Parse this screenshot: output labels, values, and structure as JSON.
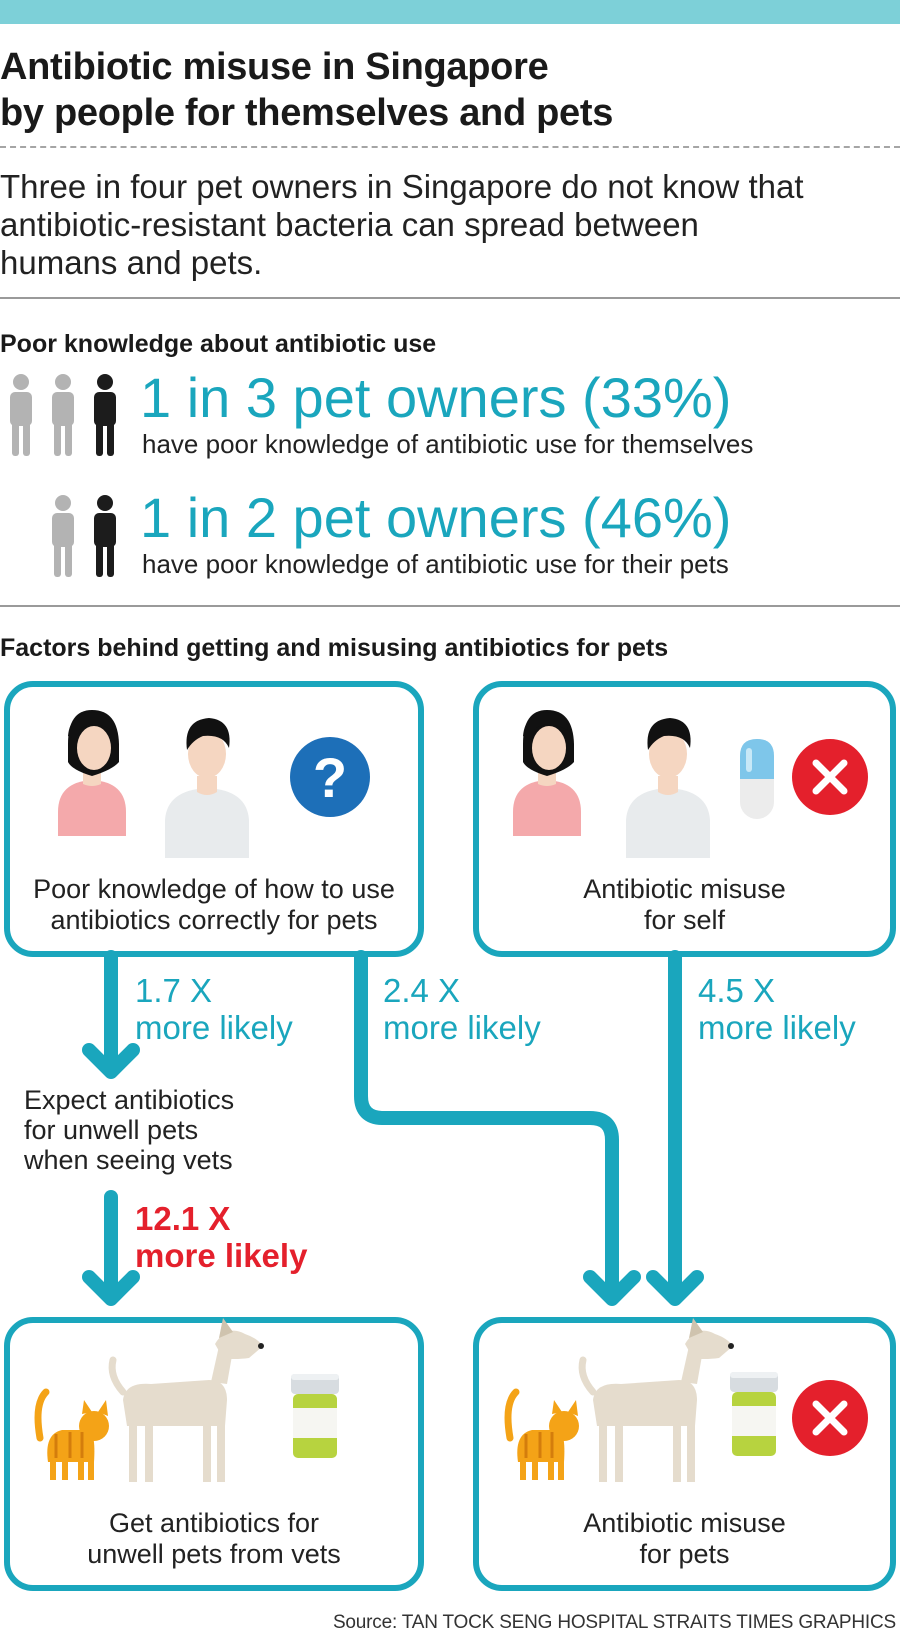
{
  "title_line1": "Antibiotic misuse in Singapore",
  "title_line2": "by people for themselves and pets",
  "intro_line1": "Three in four pet owners in Singapore do not know that",
  "intro_line2": "antibiotic-resistant bacteria can spread between",
  "intro_line3": "humans and pets.",
  "knowledge": {
    "heading": "Poor knowledge about antibiotic use",
    "stat1": {
      "headline": "1 in 3 pet owners (33%)",
      "desc": "have poor knowledge of antibiotic use for themselves",
      "total": 3,
      "highlighted": 1
    },
    "stat2": {
      "headline": "1 in 2 pet owners (46%)",
      "desc": "have poor knowledge of antibiotic use for their pets",
      "total": 2,
      "highlighted": 1
    }
  },
  "factors": {
    "heading": "Factors behind getting and misusing antibiotics for pets",
    "box_knowledge": {
      "line1": "Poor knowledge of how to use",
      "line2": "antibiotics correctly for pets"
    },
    "box_self": {
      "line1": "Antibiotic misuse",
      "line2": "for self"
    },
    "arrow1": {
      "value": "1.7 X",
      "label": "more likely"
    },
    "arrow2": {
      "value": "2.4 X",
      "label": "more likely"
    },
    "arrow3": {
      "value": "4.5 X",
      "label": "more likely"
    },
    "arrow4": {
      "value": "12.1 X",
      "label": "more likely"
    },
    "expect": {
      "line1": "Expect antibiotics",
      "line2": "for unwell pets",
      "line3": "when seeing vets"
    },
    "box_get": {
      "line1": "Get antibiotics for",
      "line2": "unwell pets from vets"
    },
    "box_misuse_pets": {
      "line1": "Antibiotic misuse",
      "line2": "for pets"
    }
  },
  "source": "Source: TAN TOCK SENG HOSPITAL   STRAITS TIMES GRAPHICS",
  "colors": {
    "teal": "#1aa6bd",
    "red": "#e4202c",
    "topbar": "#7dd0d8",
    "person_grey": "#b3b3b3",
    "person_dark": "#1c1c1c"
  }
}
